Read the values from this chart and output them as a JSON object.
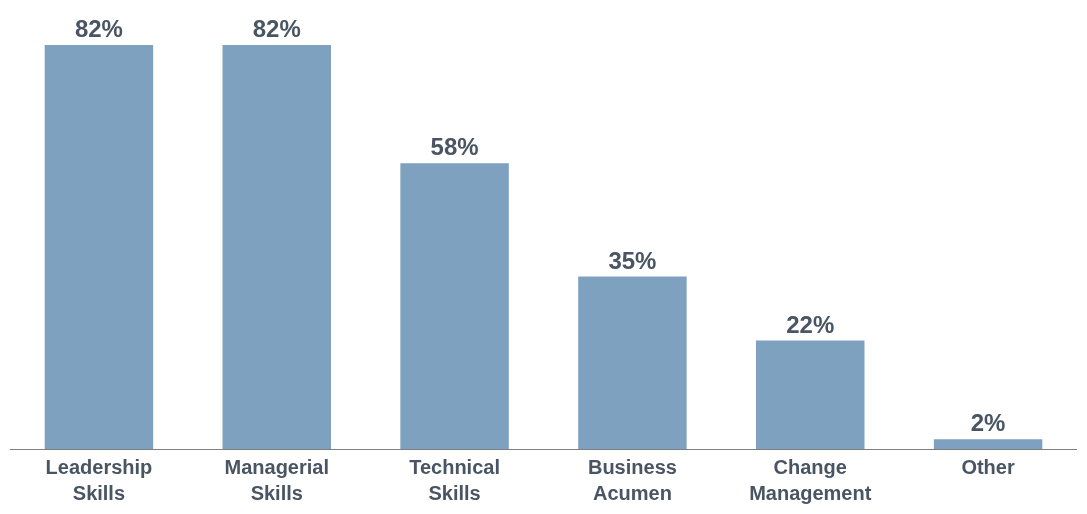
{
  "chart_data": {
    "type": "bar",
    "categories": [
      "Leadership Skills",
      "Managerial Skills",
      "Technical Skills",
      "Business Acumen",
      "Change Management",
      "Other"
    ],
    "values": [
      82,
      82,
      58,
      35,
      22,
      2
    ],
    "value_labels": [
      "82%",
      "82%",
      "58%",
      "35%",
      "22%",
      "2%"
    ],
    "color": "#7fa1c0"
  }
}
